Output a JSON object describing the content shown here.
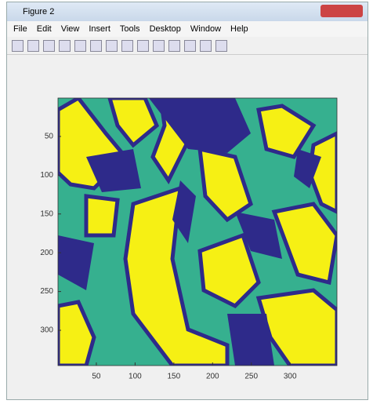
{
  "window": {
    "title": "Figure 2"
  },
  "menu": [
    "File",
    "Edit",
    "View",
    "Insert",
    "Tools",
    "Desktop",
    "Window",
    "Help"
  ],
  "chart_data": {
    "type": "image",
    "xlim": [
      0.5,
      360.5
    ],
    "ylim": [
      0.5,
      345.5
    ],
    "xticks": [
      50,
      100,
      150,
      200,
      250,
      300
    ],
    "yticks": [
      50,
      100,
      150,
      200,
      250,
      300
    ]
  }
}
